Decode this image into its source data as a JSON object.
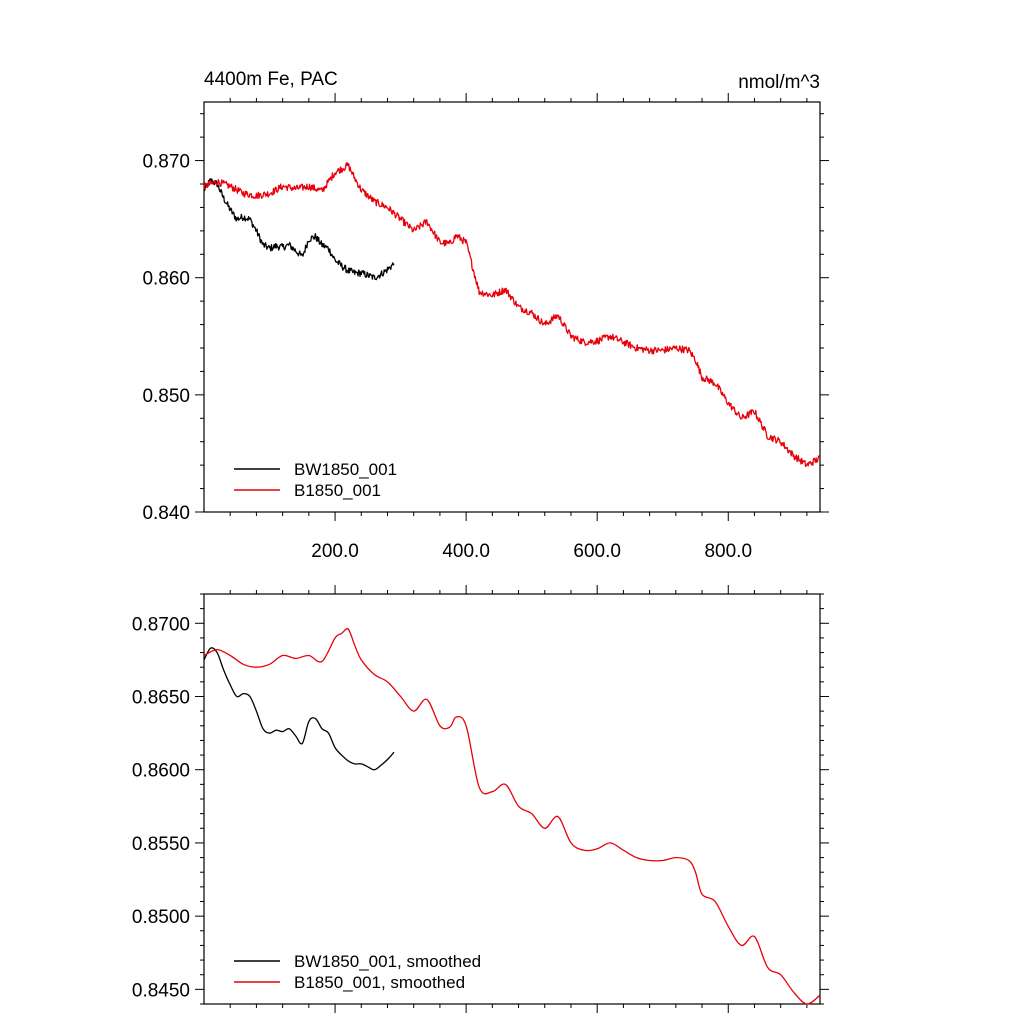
{
  "colors": {
    "black": "#000000",
    "red": "#e8000b"
  },
  "chart_data": [
    {
      "type": "line",
      "title": "4400m Fe, PAC",
      "units": "nmol/m^3",
      "xlim": [
        0,
        940
      ],
      "ylim": [
        0.84,
        0.875
      ],
      "xticks": [
        200,
        400,
        600,
        800
      ],
      "xtick_labels": [
        "200.0",
        "400.0",
        "600.0",
        "800.0"
      ],
      "yticks": [
        0.84,
        0.85,
        0.86,
        0.87
      ],
      "ytick_labels": [
        "0.840",
        "0.850",
        "0.860",
        "0.870"
      ],
      "grid": false,
      "legend_position": "bottom-left",
      "series": [
        {
          "name": "BW1850_001",
          "color": "#000000",
          "x": [
            0,
            10,
            20,
            30,
            40,
            50,
            60,
            70,
            80,
            90,
            100,
            110,
            120,
            130,
            140,
            150,
            160,
            170,
            180,
            190,
            200,
            210,
            220,
            230,
            240,
            250,
            260,
            270,
            280,
            290
          ],
          "y": [
            0.8675,
            0.8683,
            0.868,
            0.8668,
            0.8658,
            0.865,
            0.8652,
            0.865,
            0.864,
            0.8628,
            0.8625,
            0.8627,
            0.8626,
            0.8628,
            0.8623,
            0.8618,
            0.8633,
            0.8635,
            0.8628,
            0.8625,
            0.8615,
            0.861,
            0.8606,
            0.8604,
            0.8604,
            0.8602,
            0.86,
            0.8603,
            0.8607,
            0.8612
          ]
        },
        {
          "name": "B1850_001",
          "color": "#e8000b",
          "x": [
            0,
            20,
            40,
            60,
            80,
            100,
            120,
            140,
            160,
            180,
            200,
            210,
            220,
            230,
            240,
            260,
            280,
            300,
            320,
            340,
            360,
            375,
            385,
            400,
            420,
            440,
            460,
            480,
            500,
            520,
            540,
            560,
            580,
            600,
            620,
            640,
            660,
            680,
            700,
            720,
            740,
            750,
            760,
            780,
            800,
            820,
            840,
            860,
            880,
            900,
            920,
            940
          ],
          "y": [
            0.8678,
            0.8682,
            0.8678,
            0.8672,
            0.867,
            0.8672,
            0.8678,
            0.8676,
            0.8678,
            0.8674,
            0.869,
            0.8693,
            0.8696,
            0.8685,
            0.8675,
            0.8665,
            0.866,
            0.865,
            0.864,
            0.8648,
            0.863,
            0.8629,
            0.8636,
            0.863,
            0.8588,
            0.8585,
            0.859,
            0.8575,
            0.857,
            0.856,
            0.8568,
            0.855,
            0.8545,
            0.8546,
            0.855,
            0.8545,
            0.854,
            0.8538,
            0.8538,
            0.854,
            0.8538,
            0.853,
            0.8515,
            0.851,
            0.8493,
            0.848,
            0.8486,
            0.8465,
            0.846,
            0.8448,
            0.844,
            0.8446
          ]
        }
      ]
    },
    {
      "type": "line",
      "xlim": [
        0,
        940
      ],
      "ylim": [
        0.844,
        0.872
      ],
      "xticks": [
        200,
        400,
        600,
        800
      ],
      "yticks": [
        0.845,
        0.85,
        0.855,
        0.86,
        0.865,
        0.87
      ],
      "ytick_labels": [
        "0.8450",
        "0.8500",
        "0.8550",
        "0.8600",
        "0.8650",
        "0.8700"
      ],
      "grid": false,
      "legend_position": "bottom-left",
      "series": [
        {
          "name": "BW1850_001, smoothed",
          "color": "#000000",
          "x": [
            0,
            10,
            20,
            30,
            40,
            50,
            60,
            70,
            80,
            90,
            100,
            110,
            120,
            130,
            140,
            150,
            160,
            170,
            180,
            190,
            200,
            210,
            220,
            230,
            240,
            250,
            260,
            270,
            280,
            290
          ],
          "y": [
            0.8675,
            0.8683,
            0.868,
            0.8668,
            0.8658,
            0.865,
            0.8652,
            0.865,
            0.864,
            0.8628,
            0.8625,
            0.8627,
            0.8626,
            0.8628,
            0.8623,
            0.8618,
            0.8633,
            0.8635,
            0.8628,
            0.8625,
            0.8615,
            0.861,
            0.8606,
            0.8604,
            0.8604,
            0.8602,
            0.86,
            0.8603,
            0.8607,
            0.8612
          ]
        },
        {
          "name": "B1850_001, smoothed",
          "color": "#e8000b",
          "x": [
            0,
            20,
            40,
            60,
            80,
            100,
            120,
            140,
            160,
            180,
            200,
            210,
            220,
            230,
            240,
            260,
            280,
            300,
            320,
            340,
            360,
            375,
            385,
            400,
            420,
            440,
            460,
            480,
            500,
            520,
            540,
            560,
            580,
            600,
            620,
            640,
            660,
            680,
            700,
            720,
            740,
            750,
            760,
            780,
            800,
            820,
            840,
            860,
            880,
            900,
            920,
            940
          ],
          "y": [
            0.8678,
            0.8682,
            0.8678,
            0.8672,
            0.867,
            0.8672,
            0.8678,
            0.8676,
            0.8678,
            0.8674,
            0.869,
            0.8693,
            0.8696,
            0.8685,
            0.8675,
            0.8665,
            0.866,
            0.865,
            0.864,
            0.8648,
            0.863,
            0.8629,
            0.8636,
            0.863,
            0.8588,
            0.8585,
            0.859,
            0.8575,
            0.857,
            0.856,
            0.8568,
            0.855,
            0.8545,
            0.8546,
            0.855,
            0.8545,
            0.854,
            0.8538,
            0.8538,
            0.854,
            0.8538,
            0.853,
            0.8515,
            0.851,
            0.8493,
            0.848,
            0.8486,
            0.8465,
            0.846,
            0.8448,
            0.844,
            0.8446
          ]
        }
      ]
    }
  ]
}
